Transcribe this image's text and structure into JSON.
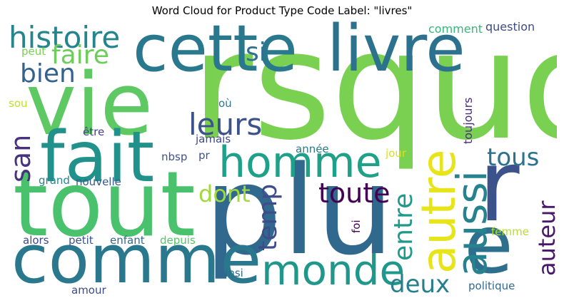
{
  "title": "Word Cloud for Product Type Code Label: \"livres\"",
  "words": [
    {
      "text": "rsquo",
      "color": "#7ad151",
      "vertical": false
    },
    {
      "text": "cette",
      "color": "#2a788e",
      "vertical": false
    },
    {
      "text": "livre",
      "color": "#2c718e",
      "vertical": false
    },
    {
      "text": "vie",
      "color": "#5ec962",
      "vertical": false
    },
    {
      "text": "fait",
      "color": "#21918c",
      "vertical": false
    },
    {
      "text": "tout",
      "color": "#4ac16d",
      "vertical": false
    },
    {
      "text": "plu",
      "color": "#31688e",
      "vertical": false
    },
    {
      "text": "comme",
      "color": "#2a788e",
      "vertical": false
    },
    {
      "text": "r",
      "color": "#3b528b",
      "vertical": false
    },
    {
      "text": "e",
      "color": "#2e6f8e",
      "vertical": false
    },
    {
      "text": "homme",
      "color": "#1fa088",
      "vertical": false
    },
    {
      "text": "monde",
      "color": "#1f988b",
      "vertical": false
    },
    {
      "text": "histoire",
      "color": "#25858e",
      "vertical": false
    },
    {
      "text": "faire",
      "color": "#6ccd5a",
      "vertical": false
    },
    {
      "text": "bien",
      "color": "#33638d",
      "vertical": false
    },
    {
      "text": "si",
      "color": "#2c718e",
      "vertical": false
    },
    {
      "text": "leurs",
      "color": "#3b528b",
      "vertical": false
    },
    {
      "text": "toute",
      "color": "#440154",
      "vertical": false
    },
    {
      "text": "dont",
      "color": "#a0da39",
      "vertical": false
    },
    {
      "text": "tous",
      "color": "#2c718e",
      "vertical": false
    },
    {
      "text": "deux",
      "color": "#277f8e",
      "vertical": false
    },
    {
      "text": "autre",
      "color": "#e7e419",
      "vertical": true
    },
    {
      "text": "aussi",
      "color": "#26828e",
      "vertical": true
    },
    {
      "text": "san",
      "color": "#46327e",
      "vertical": true
    },
    {
      "text": "temp",
      "color": "#3e4c8a",
      "vertical": true
    },
    {
      "text": "entre",
      "color": "#1f9a8a",
      "vertical": true
    },
    {
      "text": "auteur",
      "color": "#48186a",
      "vertical": true
    },
    {
      "text": "comment",
      "color": "#35b779",
      "vertical": false
    },
    {
      "text": "question",
      "color": "#3e4a89",
      "vertical": false
    },
    {
      "text": "peut",
      "color": "#7ad151",
      "vertical": false
    },
    {
      "text": "sou",
      "color": "#c2df23",
      "vertical": false
    },
    {
      "text": "où",
      "color": "#2a788e",
      "vertical": false
    },
    {
      "text": "toujours",
      "color": "#472d7b",
      "vertical": true
    },
    {
      "text": "être",
      "color": "#424086",
      "vertical": false
    },
    {
      "text": "jamais",
      "color": "#3f4889",
      "vertical": false
    },
    {
      "text": "année",
      "color": "#2a788e",
      "vertical": false
    },
    {
      "text": "jour",
      "color": "#d8e219",
      "vertical": false
    },
    {
      "text": "nbsp",
      "color": "#3b528b",
      "vertical": false
    },
    {
      "text": "pr",
      "color": "#3b528b",
      "vertical": false
    },
    {
      "text": "grand",
      "color": "#25858e",
      "vertical": false
    },
    {
      "text": "nouvelle",
      "color": "#38598c",
      "vertical": false
    },
    {
      "text": "alors",
      "color": "#3e4a89",
      "vertical": false
    },
    {
      "text": "petit",
      "color": "#3a538b",
      "vertical": false
    },
    {
      "text": "enfant",
      "color": "#31688e",
      "vertical": false
    },
    {
      "text": "depuis",
      "color": "#54c568",
      "vertical": false
    },
    {
      "text": "foi",
      "color": "#440154",
      "vertical": true
    },
    {
      "text": "femme",
      "color": "#b5de2b",
      "vertical": false
    },
    {
      "text": "ainsi",
      "color": "#31688e",
      "vertical": false
    },
    {
      "text": "amour",
      "color": "#3e4a89",
      "vertical": false
    },
    {
      "text": "politique",
      "color": "#31688e",
      "vertical": false
    }
  ]
}
